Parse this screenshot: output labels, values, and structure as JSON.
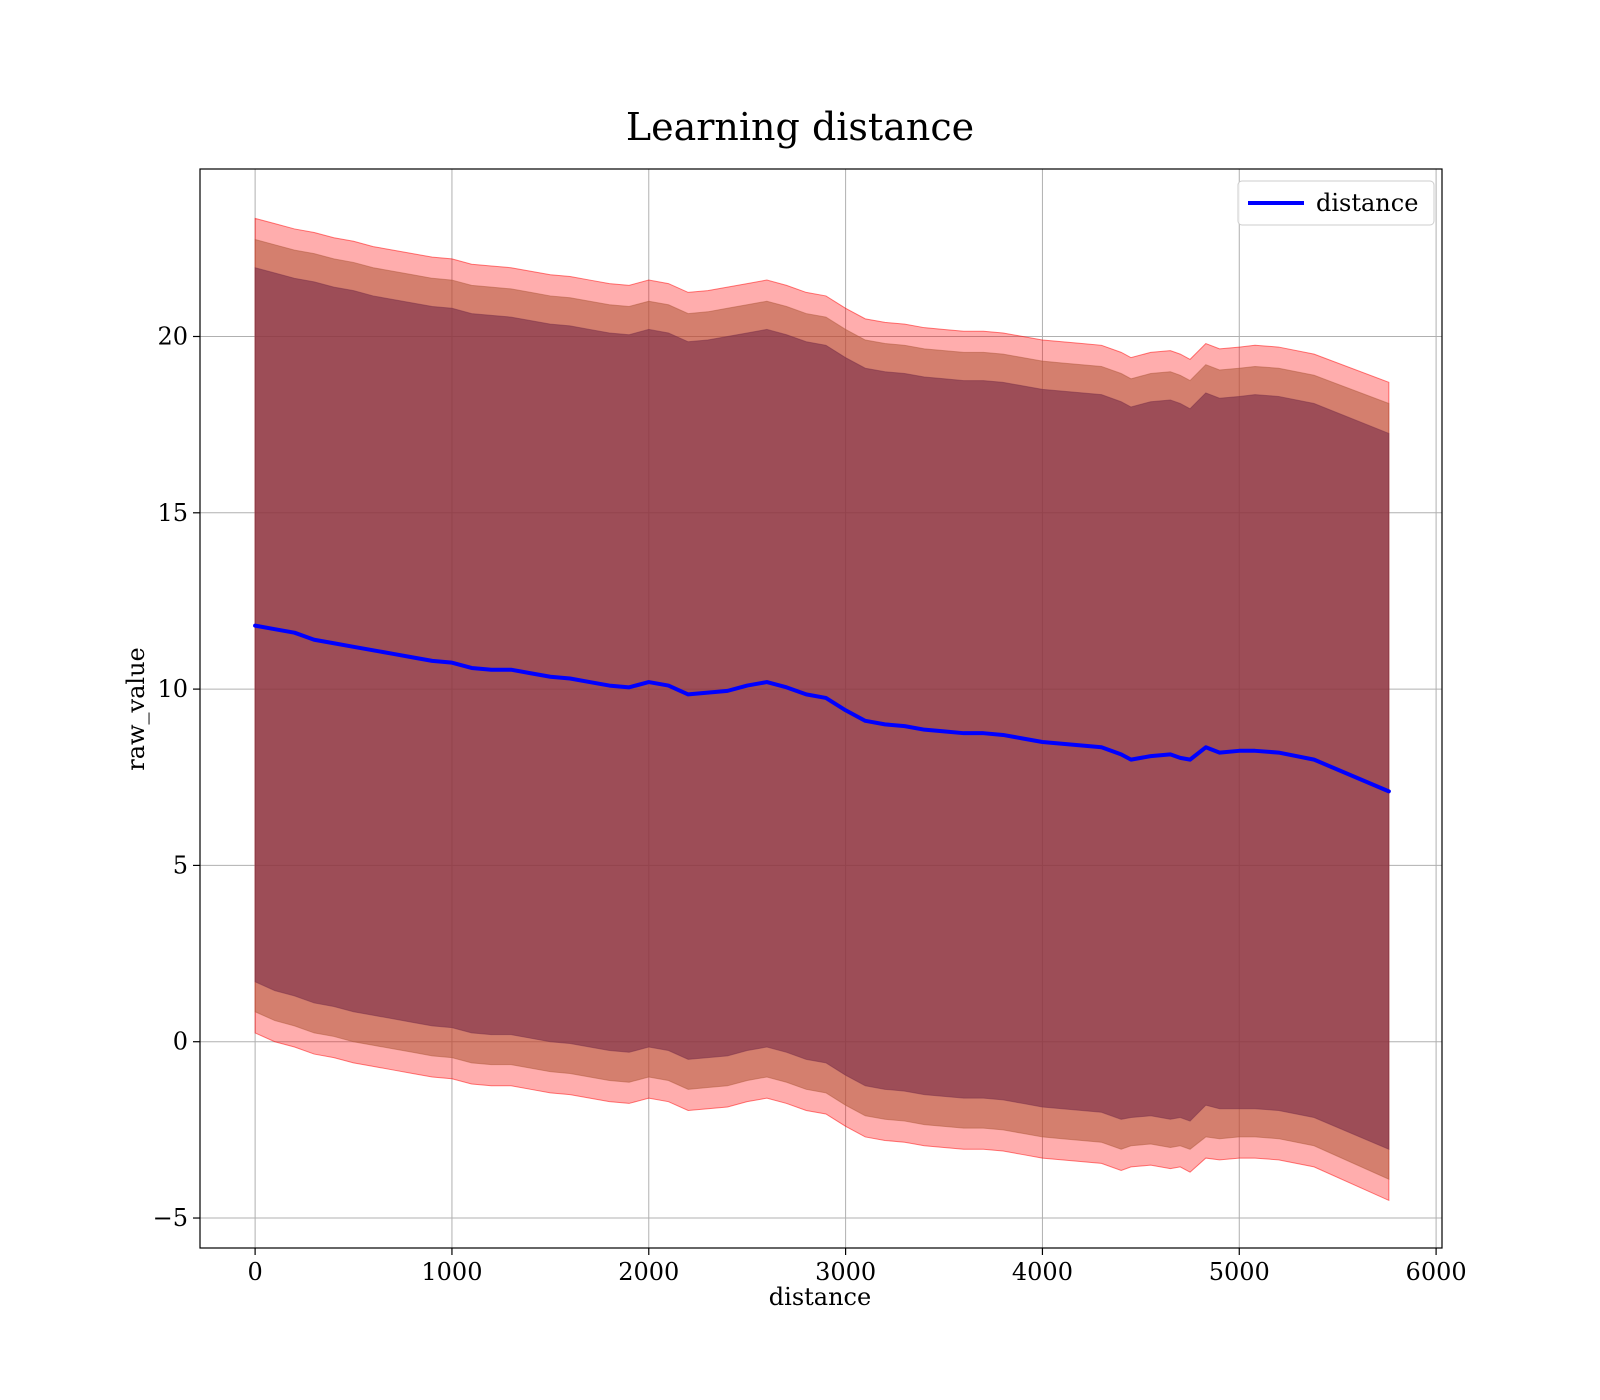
{
  "chart_data": {
    "type": "area",
    "title": "Learning distance",
    "xlabel": "distance",
    "ylabel": "raw_value",
    "xlim": [
      -280,
      6030
    ],
    "ylim": [
      -5.85,
      24.75
    ],
    "xticks": [
      0,
      1000,
      2000,
      3000,
      4000,
      5000,
      6000
    ],
    "yticks": [
      -5,
      0,
      5,
      10,
      15,
      20
    ],
    "grid": true,
    "legend": {
      "position": "top-right",
      "entries": [
        "distance"
      ]
    },
    "colors": {
      "line": "#0000ff",
      "band_outer": "#ff0000",
      "band_middle": "#b05a3b",
      "band_inner": "#7a2f49",
      "grid": "#b0b0b0",
      "axis": "#000000"
    },
    "x": [
      0,
      100,
      200,
      300,
      400,
      500,
      600,
      700,
      800,
      900,
      1000,
      1100,
      1200,
      1300,
      1400,
      1500,
      1600,
      1700,
      1800,
      1900,
      2000,
      2100,
      2200,
      2300,
      2400,
      2500,
      2600,
      2700,
      2800,
      2900,
      3000,
      3100,
      3200,
      3300,
      3400,
      3500,
      3600,
      3700,
      3800,
      3900,
      4000,
      4100,
      4200,
      4300,
      4400,
      4450,
      4550,
      4650,
      4700,
      4750,
      4830,
      4900,
      5000,
      5080,
      5200,
      5380,
      5760
    ],
    "series": [
      {
        "name": "distance",
        "values": [
          11.8,
          11.7,
          11.6,
          11.4,
          11.3,
          11.2,
          11.1,
          11.0,
          10.9,
          10.8,
          10.75,
          10.6,
          10.55,
          10.55,
          10.45,
          10.35,
          10.3,
          10.2,
          10.1,
          10.05,
          10.2,
          10.1,
          9.85,
          9.9,
          9.95,
          10.1,
          10.2,
          10.05,
          9.85,
          9.75,
          9.4,
          9.1,
          9.0,
          8.95,
          8.85,
          8.8,
          8.75,
          8.75,
          8.7,
          8.6,
          8.5,
          8.45,
          8.4,
          8.35,
          8.15,
          8.0,
          8.1,
          8.15,
          8.05,
          8.0,
          8.35,
          8.2,
          8.25,
          8.25,
          8.2,
          8.0,
          7.1
        ]
      }
    ],
    "bands": [
      {
        "name": "band-outer",
        "lower": [
          0.25,
          0.0,
          -0.15,
          -0.35,
          -0.45,
          -0.6,
          -0.7,
          -0.8,
          -0.9,
          -1.0,
          -1.05,
          -1.2,
          -1.25,
          -1.25,
          -1.35,
          -1.45,
          -1.5,
          -1.6,
          -1.7,
          -1.75,
          -1.6,
          -1.7,
          -1.95,
          -1.9,
          -1.85,
          -1.7,
          -1.6,
          -1.75,
          -1.95,
          -2.05,
          -2.4,
          -2.7,
          -2.8,
          -2.85,
          -2.95,
          -3.0,
          -3.05,
          -3.05,
          -3.1,
          -3.2,
          -3.3,
          -3.35,
          -3.4,
          -3.45,
          -3.65,
          -3.55,
          -3.5,
          -3.6,
          -3.55,
          -3.7,
          -3.3,
          -3.35,
          -3.3,
          -3.3,
          -3.35,
          -3.55,
          -4.5
        ],
        "upper": [
          23.35,
          23.2,
          23.05,
          22.95,
          22.8,
          22.7,
          22.55,
          22.45,
          22.35,
          22.25,
          22.2,
          22.05,
          22.0,
          21.95,
          21.85,
          21.75,
          21.7,
          21.6,
          21.5,
          21.45,
          21.6,
          21.5,
          21.25,
          21.3,
          21.4,
          21.5,
          21.6,
          21.45,
          21.25,
          21.15,
          20.8,
          20.5,
          20.4,
          20.35,
          20.25,
          20.2,
          20.15,
          20.15,
          20.1,
          20.0,
          19.9,
          19.85,
          19.8,
          19.75,
          19.55,
          19.4,
          19.55,
          19.6,
          19.5,
          19.35,
          19.8,
          19.65,
          19.7,
          19.75,
          19.7,
          19.5,
          18.7
        ]
      },
      {
        "name": "band-middle",
        "lower": [
          0.85,
          0.6,
          0.45,
          0.25,
          0.15,
          0.0,
          -0.1,
          -0.2,
          -0.3,
          -0.4,
          -0.45,
          -0.6,
          -0.65,
          -0.65,
          -0.75,
          -0.85,
          -0.9,
          -1.0,
          -1.1,
          -1.15,
          -1.0,
          -1.1,
          -1.35,
          -1.3,
          -1.25,
          -1.1,
          -1.0,
          -1.15,
          -1.35,
          -1.45,
          -1.8,
          -2.1,
          -2.2,
          -2.25,
          -2.35,
          -2.4,
          -2.45,
          -2.45,
          -2.5,
          -2.6,
          -2.7,
          -2.75,
          -2.8,
          -2.85,
          -3.05,
          -2.95,
          -2.9,
          -3.0,
          -2.95,
          -3.05,
          -2.7,
          -2.75,
          -2.7,
          -2.7,
          -2.75,
          -2.95,
          -3.9
        ],
        "upper": [
          22.75,
          22.6,
          22.45,
          22.35,
          22.2,
          22.1,
          21.95,
          21.85,
          21.75,
          21.65,
          21.6,
          21.45,
          21.4,
          21.35,
          21.25,
          21.15,
          21.1,
          21.0,
          20.9,
          20.85,
          21.0,
          20.9,
          20.65,
          20.7,
          20.8,
          20.9,
          21.0,
          20.85,
          20.65,
          20.55,
          20.2,
          19.9,
          19.8,
          19.75,
          19.65,
          19.6,
          19.55,
          19.55,
          19.5,
          19.4,
          19.3,
          19.25,
          19.2,
          19.15,
          18.95,
          18.8,
          18.95,
          19.0,
          18.9,
          18.75,
          19.2,
          19.05,
          19.1,
          19.15,
          19.1,
          18.9,
          18.1
        ]
      },
      {
        "name": "band-inner",
        "lower": [
          1.7,
          1.45,
          1.3,
          1.1,
          1.0,
          0.85,
          0.75,
          0.65,
          0.55,
          0.45,
          0.4,
          0.25,
          0.2,
          0.2,
          0.1,
          0.0,
          -0.05,
          -0.15,
          -0.25,
          -0.3,
          -0.15,
          -0.25,
          -0.5,
          -0.45,
          -0.4,
          -0.25,
          -0.15,
          -0.3,
          -0.5,
          -0.6,
          -0.95,
          -1.25,
          -1.35,
          -1.4,
          -1.5,
          -1.55,
          -1.6,
          -1.6,
          -1.65,
          -1.75,
          -1.85,
          -1.9,
          -1.95,
          -2.0,
          -2.2,
          -2.15,
          -2.1,
          -2.2,
          -2.15,
          -2.25,
          -1.8,
          -1.9,
          -1.9,
          -1.9,
          -1.95,
          -2.15,
          -3.05
        ],
        "upper": [
          21.95,
          21.8,
          21.65,
          21.55,
          21.4,
          21.3,
          21.15,
          21.05,
          20.95,
          20.85,
          20.8,
          20.65,
          20.6,
          20.55,
          20.45,
          20.35,
          20.3,
          20.2,
          20.1,
          20.05,
          20.2,
          20.1,
          19.85,
          19.9,
          20.0,
          20.1,
          20.2,
          20.05,
          19.85,
          19.75,
          19.4,
          19.1,
          19.0,
          18.95,
          18.85,
          18.8,
          18.75,
          18.75,
          18.7,
          18.6,
          18.5,
          18.45,
          18.4,
          18.35,
          18.15,
          18.0,
          18.15,
          18.2,
          18.1,
          17.95,
          18.4,
          18.25,
          18.3,
          18.35,
          18.3,
          18.1,
          17.25
        ]
      }
    ]
  }
}
